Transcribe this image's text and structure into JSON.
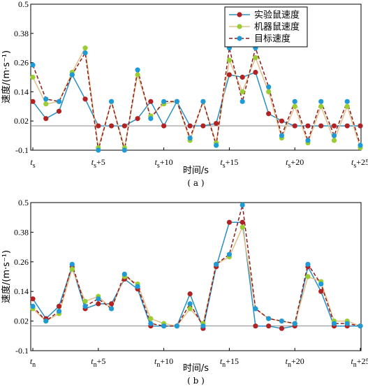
{
  "colors": {
    "experimental": "#b22222",
    "machine": "#9acd32",
    "target": "#1e9bd7",
    "line_experimental": "#2a8fc4",
    "line_machine": "#e3c08a",
    "line_target": "#8b1a1a",
    "axis": "#000000",
    "grid": "#888888"
  },
  "chart_data": [
    {
      "type": "line",
      "caption": "( a )",
      "xlabel": "时间/s",
      "ylabel": "速度/(m·s⁻¹)",
      "ylim": [
        -0.1,
        0.5
      ],
      "yticks": [
        "-0.1",
        "0.02",
        "0.14",
        "0.26",
        "0.38",
        "0.5"
      ],
      "xtick_labels": [
        {
          "base": "t",
          "sub": "s",
          "suffix": ""
        },
        {
          "base": "t",
          "sub": "s",
          "suffix": "+5"
        },
        {
          "base": "t",
          "sub": "s",
          "suffix": "+10"
        },
        {
          "base": "t",
          "sub": "s",
          "suffix": "+15"
        },
        {
          "base": "t",
          "sub": "s",
          "suffix": "+20"
        },
        {
          "base": "t",
          "sub": "s",
          "suffix": "+25"
        }
      ],
      "legend": [
        "实验鼠速度",
        "机器鼠速度",
        "目标速度"
      ],
      "legend_position": "top-right",
      "x": [
        0,
        1,
        2,
        3,
        4,
        5,
        6,
        7,
        8,
        9,
        10,
        11,
        12,
        13,
        14,
        15,
        16,
        17,
        18,
        19,
        20,
        21,
        22,
        23,
        24,
        25
      ],
      "series": [
        {
          "name": "实验鼠速度",
          "values": [
            0.1,
            0.03,
            0.06,
            0.21,
            0.11,
            0.0,
            0.0,
            0.0,
            0.03,
            0.1,
            0.0,
            0.1,
            0.0,
            0.0,
            0.01,
            0.21,
            0.2,
            0.22,
            0.05,
            0.02,
            0.0,
            0.0,
            0.0,
            0.0,
            0.0,
            0.0
          ]
        },
        {
          "name": "机器鼠速度",
          "values": [
            0.2,
            0.09,
            0.1,
            0.22,
            0.32,
            -0.09,
            0.1,
            -0.09,
            0.21,
            0.04,
            0.09,
            0.1,
            -0.06,
            0.1,
            -0.07,
            0.27,
            0.14,
            0.28,
            0.14,
            -0.05,
            0.08,
            -0.07,
            0.08,
            -0.06,
            0.08,
            -0.09
          ]
        },
        {
          "name": "目标速度",
          "values": [
            0.25,
            0.11,
            0.1,
            0.21,
            0.3,
            -0.1,
            0.1,
            -0.1,
            0.23,
            0.03,
            0.1,
            0.1,
            -0.05,
            0.1,
            -0.08,
            0.32,
            0.1,
            0.32,
            0.16,
            -0.04,
            0.1,
            -0.06,
            0.1,
            -0.04,
            0.1,
            -0.08
          ]
        }
      ]
    },
    {
      "type": "line",
      "caption": "( b )",
      "xlabel": "时间/s",
      "ylabel": "速度/(m·s⁻¹)",
      "ylim": [
        -0.1,
        0.5
      ],
      "yticks": [
        "-0.1",
        "0.02",
        "0.14",
        "0.26",
        "0.38",
        "0.5"
      ],
      "xtick_labels": [
        {
          "base": "t",
          "sub": "n",
          "suffix": ""
        },
        {
          "base": "t",
          "sub": "n",
          "suffix": "+5"
        },
        {
          "base": "t",
          "sub": "n",
          "suffix": "+10"
        },
        {
          "base": "t",
          "sub": "n",
          "suffix": "+15"
        },
        {
          "base": "t",
          "sub": "n",
          "suffix": "+20"
        },
        {
          "base": "t",
          "sub": "n",
          "suffix": "+25"
        }
      ],
      "x": [
        0,
        1,
        2,
        3,
        4,
        5,
        6,
        7,
        8,
        9,
        10,
        11,
        12,
        13,
        14,
        15,
        16,
        17,
        18,
        19,
        20,
        21,
        22,
        23,
        24,
        25
      ],
      "series": [
        {
          "name": "实验鼠速度",
          "values": [
            0.11,
            0.03,
            0.08,
            0.24,
            0.07,
            0.09,
            0.09,
            0.19,
            0.15,
            0.0,
            0.0,
            0.0,
            0.13,
            -0.01,
            0.24,
            0.42,
            0.42,
            0.0,
            0.0,
            -0.01,
            0.0,
            0.24,
            0.14,
            0.0,
            0.0,
            0.0
          ]
        },
        {
          "name": "机器鼠速度",
          "values": [
            0.07,
            0.02,
            0.05,
            0.23,
            0.1,
            0.12,
            0.07,
            0.2,
            0.17,
            0.03,
            0.01,
            0.0,
            0.07,
            0.01,
            0.25,
            0.28,
            0.4,
            0.07,
            0.03,
            0.02,
            0.01,
            0.2,
            0.18,
            0.02,
            0.02,
            0.0
          ]
        },
        {
          "name": "目标速度",
          "values": [
            0.08,
            0.02,
            0.06,
            0.25,
            0.08,
            0.11,
            0.07,
            0.21,
            0.16,
            0.01,
            0.0,
            0.0,
            0.09,
            0.0,
            0.25,
            0.29,
            0.49,
            0.07,
            0.03,
            0.02,
            0.01,
            0.25,
            0.17,
            0.01,
            0.01,
            0.0
          ]
        }
      ]
    }
  ]
}
